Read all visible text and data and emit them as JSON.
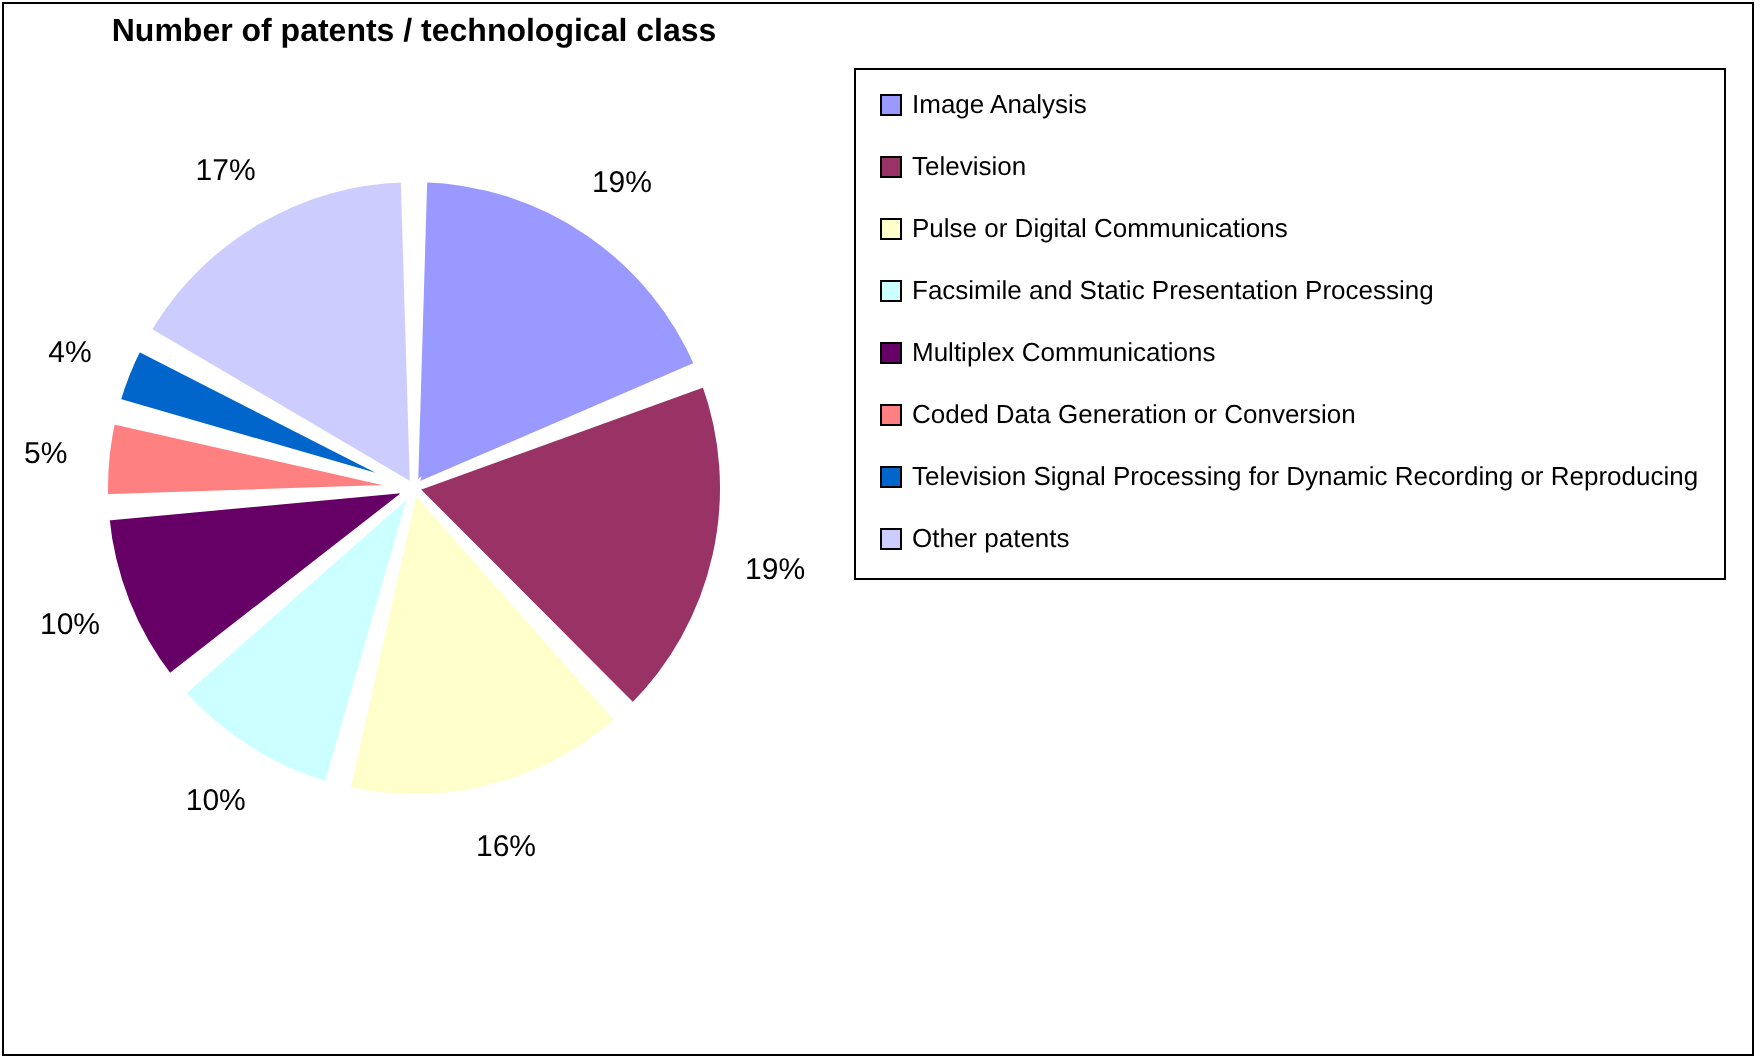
{
  "chart_data": {
    "type": "pie",
    "title": "Number of patents / technological class",
    "categories": [
      "Image Analysis",
      "Television",
      "Pulse or Digital Communications",
      "Facsimile and Static Presentation Processing",
      "Multiplex Communications",
      "Coded Data Generation or Conversion",
      "Television Signal Processing for Dynamic Recording or Reproducing",
      "Other patents"
    ],
    "values": [
      19,
      19,
      16,
      10,
      10,
      5,
      4,
      17
    ],
    "colors": [
      "#9999ff",
      "#993366",
      "#ffffcc",
      "#ccffff",
      "#660066",
      "#ff8080",
      "#0066cc",
      "#ccccff"
    ],
    "value_labels": [
      "19%",
      "19%",
      "16%",
      "10%",
      "10%",
      "5%",
      "4%",
      "17%"
    ],
    "legend": "right"
  }
}
